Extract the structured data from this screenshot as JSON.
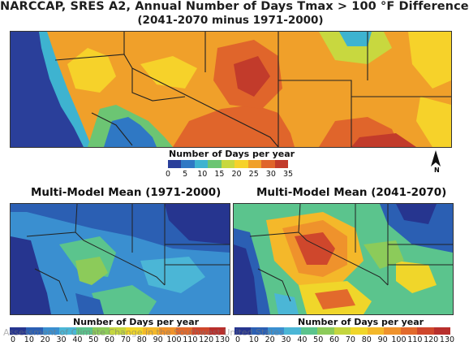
{
  "title_line1": "NARCCAP, SRES A2, Annual Number of Days Tmax > 100 °F Difference",
  "title_line2": "(2041-2070 minus 1971-2000)",
  "top_map": {
    "legend_title": "Number of Days per year",
    "ticks": [
      "0",
      "5",
      "10",
      "15",
      "20",
      "25",
      "30",
      "35"
    ],
    "colors": [
      "#2a3f9a",
      "#2f78c4",
      "#3eb3d0",
      "#6cc573",
      "#c8d83f",
      "#f6d22a",
      "#f0a02a",
      "#e0652b",
      "#c23b2b"
    ]
  },
  "north_arrow": {
    "letter": "N"
  },
  "bottom_left": {
    "title": "Multi-Model Mean (1971-2000)",
    "legend_title": "Number of Days per year"
  },
  "bottom_right": {
    "title": "Multi-Model Mean (2041-2070)",
    "legend_title": "Number of Days per year"
  },
  "bottom_scale": {
    "ticks": [
      "0",
      "10",
      "20",
      "30",
      "40",
      "50",
      "60",
      "70",
      "80",
      "90",
      "100",
      "110",
      "120",
      "130"
    ],
    "colors": [
      "#26358f",
      "#2b5fb3",
      "#3a8fd0",
      "#4bb6d6",
      "#5bc48d",
      "#8ccb5a",
      "#c4d63f",
      "#f0d62a",
      "#f4b82a",
      "#ef922c",
      "#e26a2c",
      "#cf472c",
      "#b82f2c"
    ]
  },
  "watermark": "Assessment of Climate Change in the Southwest United States"
}
